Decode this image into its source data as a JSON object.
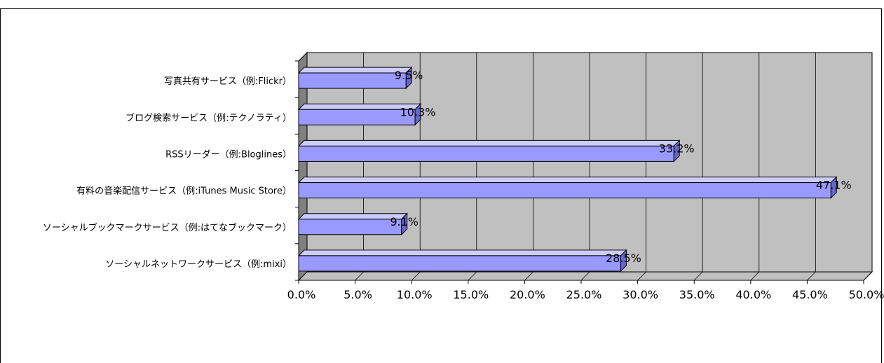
{
  "chart_data": {
    "type": "bar",
    "orientation": "horizontal",
    "three_d": true,
    "categories": [
      "写真共有サービス（例:Flickr）",
      "ブログ検索サービス（例:テクノラティ）",
      "RSSリーダー（例:Bloglines）",
      "有料の音楽配信サービス（例:iTunes Music Store）",
      "ソーシャルブックマークサービス（例:はてなブックマーク）",
      "ソーシャルネットワークサービス（例:mixi）"
    ],
    "values": [
      9.5,
      10.3,
      33.2,
      47.1,
      9.1,
      28.5
    ],
    "data_labels": [
      "9.5%",
      "10.3%",
      "33.2%",
      "47.1%",
      "9.1%",
      "28.5%"
    ],
    "xlim": [
      0,
      50
    ],
    "x_ticks": [
      0,
      5,
      10,
      15,
      20,
      25,
      30,
      35,
      40,
      45,
      50
    ],
    "x_tick_labels": [
      "0.0%",
      "5.0%",
      "10.0%",
      "15.0%",
      "20.0%",
      "25.0%",
      "30.0%",
      "35.0%",
      "40.0%",
      "45.0%",
      "50.0%"
    ],
    "grid": true,
    "legend": "none",
    "colors": {
      "bar_front": "#9999ff",
      "bar_top": "#ccccff",
      "bar_side": "#6666cc",
      "plot_wall": "#c0c0c0",
      "side_wall": "#808080",
      "floor": "#c0c0c0",
      "gridline": "#000000"
    }
  }
}
